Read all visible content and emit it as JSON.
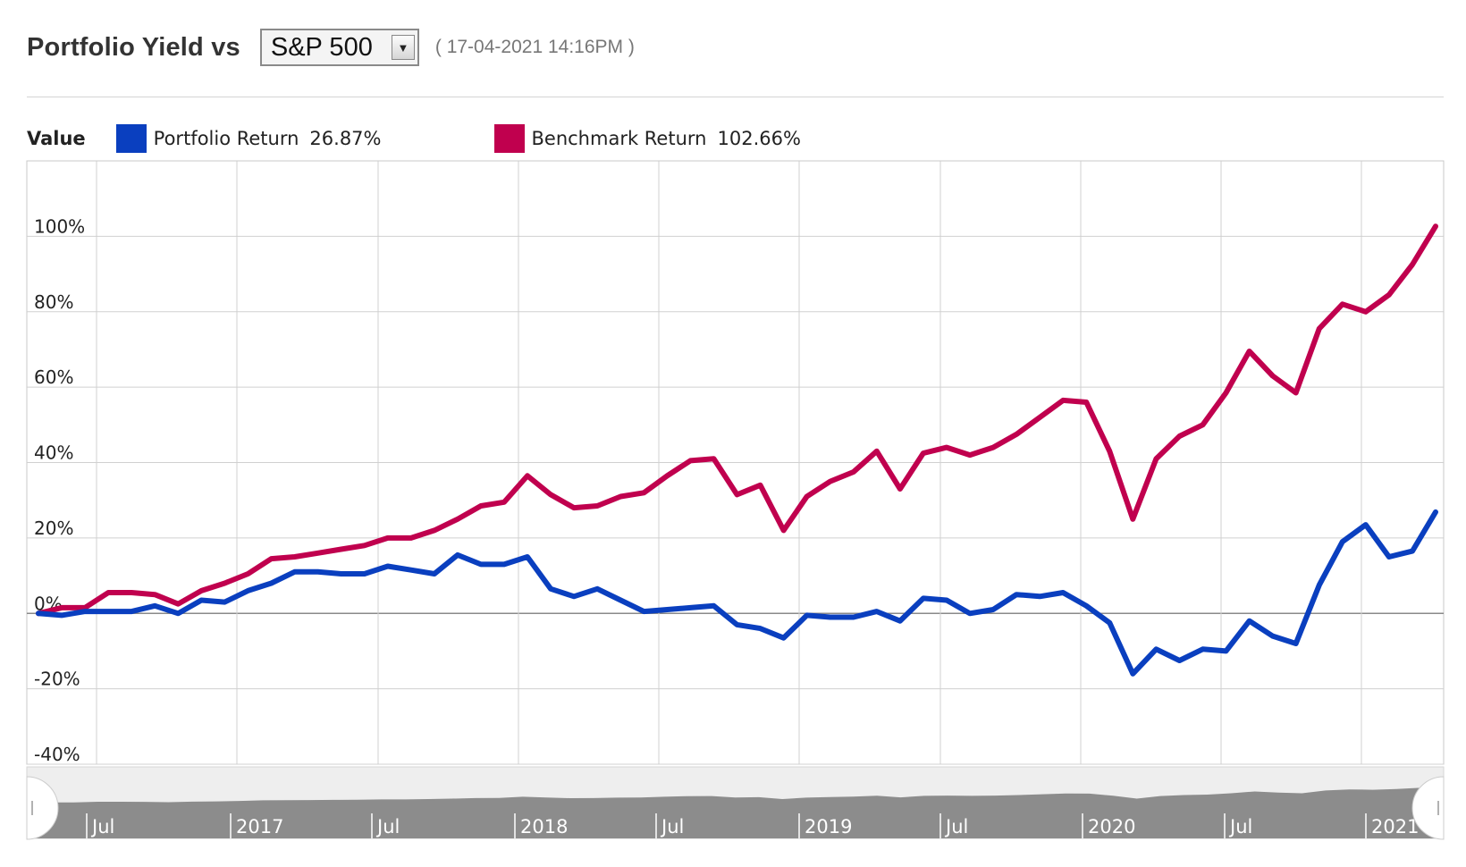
{
  "header": {
    "title": "Portfolio Yield vs",
    "benchmark_select": "S&P 500",
    "timestamp": "( 17-04-2021 14:16PM )"
  },
  "legend": {
    "title": "Value",
    "items": [
      {
        "name": "Portfolio Return",
        "value": "26.87%",
        "color": "#0a3fbf"
      },
      {
        "name": "Benchmark Return",
        "value": "102.66%",
        "color": "#c0004e"
      }
    ]
  },
  "chart_data": {
    "type": "line",
    "y_ticks": [
      {
        "value": 100,
        "label": "100%"
      },
      {
        "value": 80,
        "label": "80%"
      },
      {
        "value": 60,
        "label": "60%"
      },
      {
        "value": 40,
        "label": "40%"
      },
      {
        "value": 20,
        "label": "20%"
      },
      {
        "value": 0,
        "label": "0%"
      },
      {
        "value": -20,
        "label": "-20%"
      },
      {
        "value": -40,
        "label": "-40%"
      }
    ],
    "ylim": [
      -40,
      120
    ],
    "x_dates": [
      "2016-04",
      "2016-05",
      "2016-06",
      "2016-07",
      "2016-08",
      "2016-09",
      "2016-10",
      "2016-11",
      "2016-12",
      "2017-01",
      "2017-02",
      "2017-03",
      "2017-04",
      "2017-05",
      "2017-06",
      "2017-07",
      "2017-08",
      "2017-09",
      "2017-10",
      "2017-11",
      "2017-12",
      "2018-01",
      "2018-02",
      "2018-03",
      "2018-04",
      "2018-05",
      "2018-06",
      "2018-07",
      "2018-08",
      "2018-09",
      "2018-10",
      "2018-11",
      "2018-12",
      "2019-01",
      "2019-02",
      "2019-03",
      "2019-04",
      "2019-05",
      "2019-06",
      "2019-07",
      "2019-08",
      "2019-09",
      "2019-10",
      "2019-11",
      "2019-12",
      "2020-01",
      "2020-02",
      "2020-03",
      "2020-04",
      "2020-05",
      "2020-06",
      "2020-07",
      "2020-08",
      "2020-09",
      "2020-10",
      "2020-11",
      "2020-12",
      "2021-01",
      "2021-02",
      "2021-03",
      "2021-04"
    ],
    "series": [
      {
        "name": "Portfolio Return",
        "color": "#0a3fbf",
        "values": [
          0,
          -0.5,
          0.5,
          0.5,
          0.5,
          2,
          0,
          3.5,
          3,
          6,
          8,
          11,
          11,
          10.5,
          10.5,
          12.5,
          11.5,
          10.5,
          15.5,
          13,
          13,
          15,
          6.5,
          4.5,
          6.5,
          3.5,
          0.5,
          1,
          1.5,
          2,
          -3,
          -4,
          -6.5,
          -0.5,
          -1,
          -1,
          0.5,
          -2,
          4,
          3.5,
          0,
          1,
          5,
          4.5,
          5.5,
          2,
          -2.5,
          -16,
          -9.5,
          -12.5,
          -9.5,
          -10,
          -2,
          -6,
          -8,
          7.5,
          19,
          23.5,
          15,
          16.5,
          26.87
        ]
      },
      {
        "name": "Benchmark Return",
        "color": "#c0004e",
        "values": [
          0,
          1.5,
          1.5,
          5.5,
          5.5,
          5,
          2.5,
          6,
          8,
          10.5,
          14.5,
          15,
          16,
          17,
          18,
          20,
          20,
          22,
          25,
          28.5,
          29.5,
          36.5,
          31.5,
          28,
          28.5,
          31,
          32,
          36.5,
          40.5,
          41,
          31.5,
          34,
          22,
          31,
          35,
          37.5,
          43,
          33,
          42.5,
          44,
          42,
          44,
          47.5,
          52,
          56.5,
          56,
          43,
          25,
          41,
          47,
          50,
          58.5,
          69.5,
          63,
          58.5,
          75.5,
          82,
          80,
          84.5,
          92.5,
          102.66
        ]
      }
    ],
    "x_tick_labels": [
      "Jul",
      "2017",
      "Jul",
      "2018",
      "Jul",
      "2019",
      "Jul",
      "2020",
      "Jul",
      "2021"
    ],
    "grid": true
  },
  "navigator": {
    "labels": [
      "Jul",
      "2017",
      "Jul",
      "2018",
      "Jul",
      "2019",
      "Jul",
      "2020",
      "Jul",
      "2021"
    ]
  }
}
